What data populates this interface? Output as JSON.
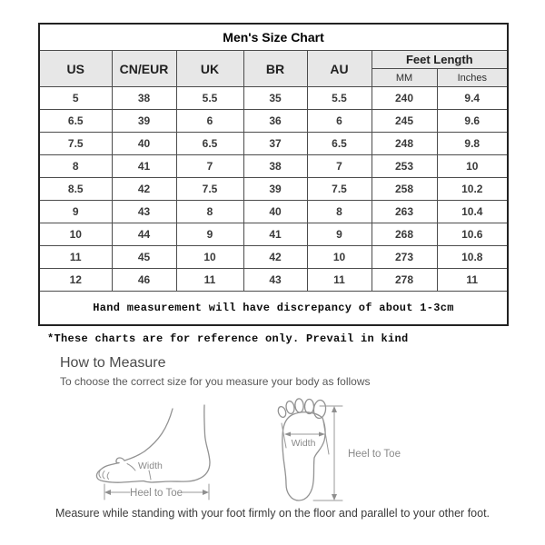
{
  "chart_data": {
    "type": "table",
    "title": "Men's Size Chart",
    "headers": {
      "us": "US",
      "cn_eur": "CN/EUR",
      "uk": "UK",
      "br": "BR",
      "au": "AU",
      "feet_length": "Feet Length",
      "mm": "MM",
      "inches": "Inches"
    },
    "columns": [
      "US",
      "CN/EUR",
      "UK",
      "BR",
      "AU",
      "MM",
      "Inches"
    ],
    "column_group": {
      "label": "Feet Length",
      "spans": [
        "MM",
        "Inches"
      ]
    },
    "rows": [
      [
        "5",
        "38",
        "5.5",
        "35",
        "5.5",
        "240",
        "9.4"
      ],
      [
        "6.5",
        "39",
        "6",
        "36",
        "6",
        "245",
        "9.6"
      ],
      [
        "7.5",
        "40",
        "6.5",
        "37",
        "6.5",
        "248",
        "9.8"
      ],
      [
        "8",
        "41",
        "7",
        "38",
        "7",
        "253",
        "10"
      ],
      [
        "8.5",
        "42",
        "7.5",
        "39",
        "7.5",
        "258",
        "10.2"
      ],
      [
        "9",
        "43",
        "8",
        "40",
        "8",
        "263",
        "10.4"
      ],
      [
        "10",
        "44",
        "9",
        "41",
        "9",
        "268",
        "10.6"
      ],
      [
        "11",
        "45",
        "10",
        "42",
        "10",
        "273",
        "10.8"
      ],
      [
        "12",
        "46",
        "11",
        "43",
        "11",
        "278",
        "11"
      ]
    ],
    "note": "Hand measurement will have discrepancy of about 1-3cm"
  },
  "page": {
    "disclaimer": "*These charts are for reference only. Prevail in kind",
    "how_to_measure": {
      "title": "How to Measure",
      "subtitle": "To choose the correct size for you measure your body as follows",
      "caption": "Measure while standing with your foot firmly on the floor and parallel to your other foot."
    },
    "diagram_labels": {
      "side_width": "Width",
      "side_heel_to_toe": "Heel to Toe",
      "sole_width": "Width",
      "sole_heel_to_toe": "Heel to Toe"
    }
  },
  "colors": {
    "header_bg": "#e7e7e7",
    "table_border": "#4c4c4c",
    "outer_border": "#222222",
    "diagram_stroke": "#929292",
    "muted_text": "#585858"
  }
}
